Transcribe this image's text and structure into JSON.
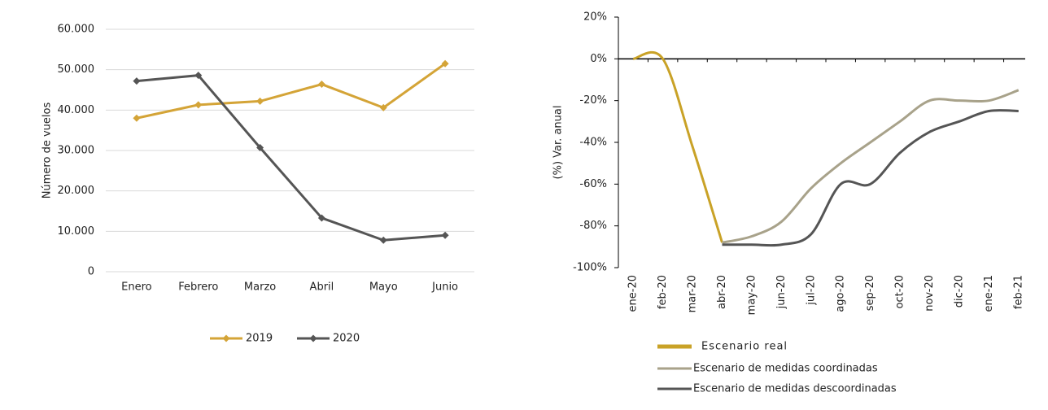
{
  "chart_data": [
    {
      "type": "line",
      "categories": [
        "Enero",
        "Febrero",
        "Marzo",
        "Abril",
        "Mayo",
        "Junio"
      ],
      "ylabel": "Número de vuelos",
      "series": [
        {
          "name": "2019",
          "color": "#d4a437",
          "values": [
            38000,
            41300,
            42200,
            46400,
            40600,
            51500
          ]
        },
        {
          "name": "2020",
          "color": "#555555",
          "values": [
            47200,
            48600,
            30700,
            13300,
            7800,
            9000
          ]
        }
      ],
      "ylim": [
        0,
        60000
      ],
      "yticks": [
        0,
        {
          "value": 10000,
          "label": "10.000"
        },
        {
          "value": 20000,
          "label": "20.000"
        },
        {
          "value": 30000,
          "label": "30.000"
        },
        {
          "value": 40000,
          "label": "40.000"
        },
        {
          "value": 50000,
          "label": "50.000"
        },
        {
          "value": 60000,
          "label": "60.000"
        }
      ],
      "grid": true,
      "markers": true,
      "smooth": false,
      "legend": "bottom"
    },
    {
      "type": "line",
      "categories": [
        "ene-20",
        "feb-20",
        "mar-20",
        "abr-20",
        "may-20",
        "jun-20",
        "jul-20",
        "ago-20",
        "sep-20",
        "oct-20",
        "nov-20",
        "dic-20",
        "ene-21",
        "feb-21"
      ],
      "ylabel": "(%) Var. anual",
      "series": [
        {
          "name": "Escenario real",
          "color": "#c9a227",
          "values": [
            0,
            0,
            -42,
            -88,
            null,
            null,
            null,
            null,
            null,
            null,
            null,
            null,
            null,
            null
          ]
        },
        {
          "name": "Escenario de medidas coordinadas",
          "color": "#a8a28a",
          "values": [
            null,
            null,
            null,
            -88,
            -85,
            -78,
            -62,
            -50,
            -40,
            -30,
            -20,
            -20,
            -20,
            -15
          ]
        },
        {
          "name": "Escenario de medidas descoordinadas",
          "color": "#555555",
          "values": [
            null,
            null,
            null,
            -89,
            -89,
            -89,
            -84,
            -60,
            -60,
            -45,
            -35,
            -30,
            -25,
            -25
          ]
        }
      ],
      "ylim": [
        -100,
        20
      ],
      "yticks": [
        {
          "value": -100,
          "label": "-100%"
        },
        {
          "value": -80,
          "label": "-80%"
        },
        {
          "value": -60,
          "label": "-60%"
        },
        {
          "value": -40,
          "label": "-40%"
        },
        {
          "value": -20,
          "label": "-20%"
        },
        {
          "value": 0,
          "label": "0%"
        },
        {
          "value": 20,
          "label": "20%"
        }
      ],
      "grid": false,
      "markers": false,
      "smooth": true,
      "legend": "bottom"
    }
  ]
}
